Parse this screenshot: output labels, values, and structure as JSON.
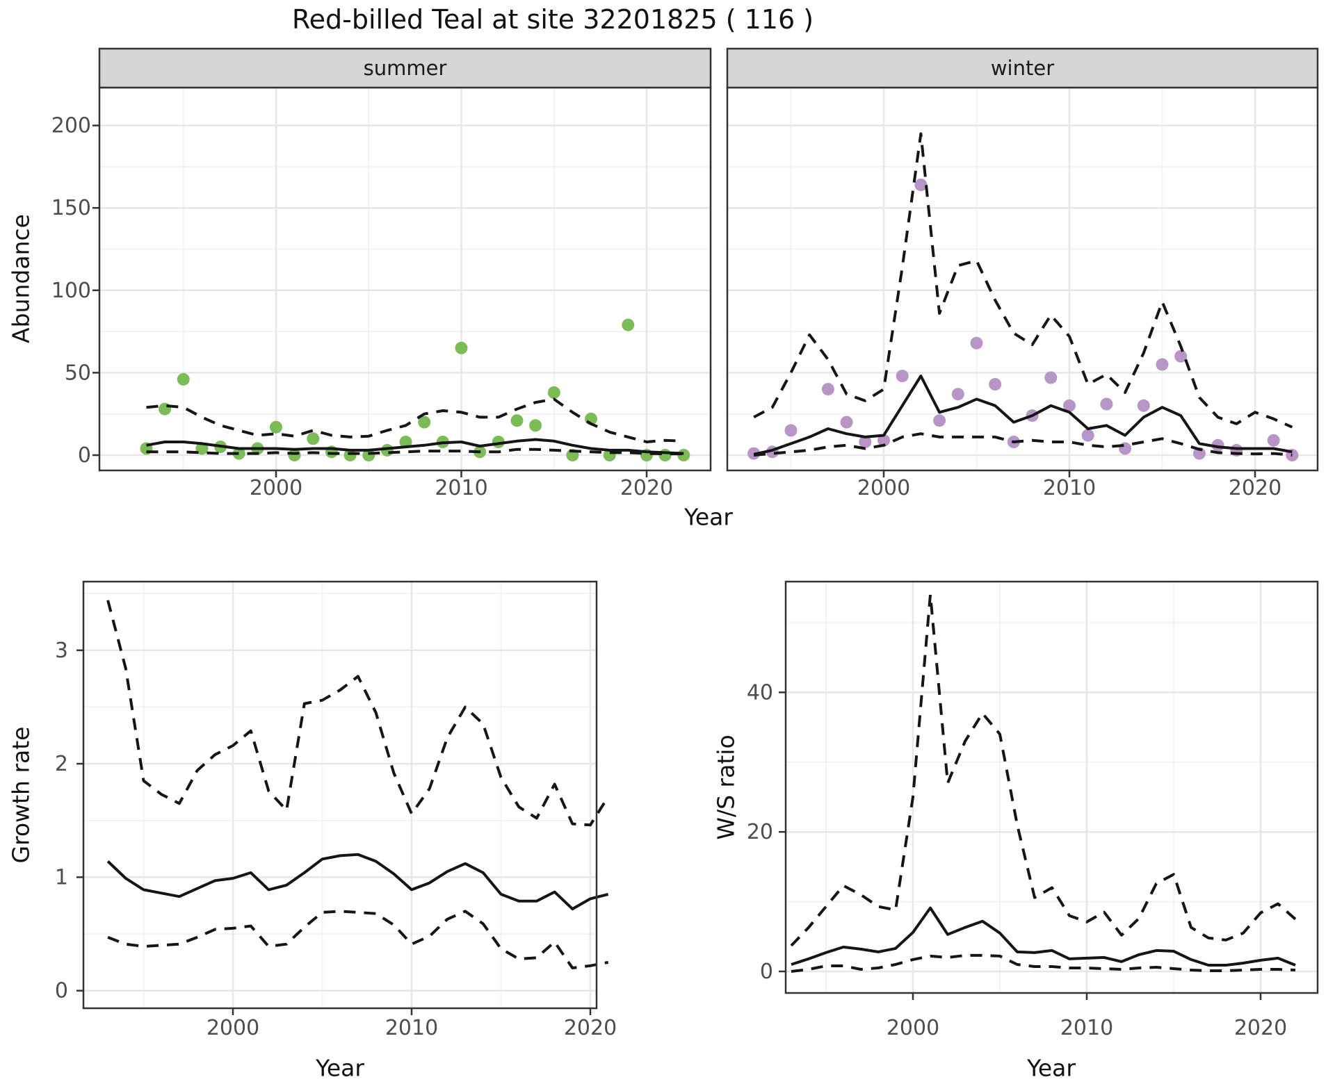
{
  "title": "Red-billed Teal at site 32201825 ( 116 )",
  "colors": {
    "summer_points": "#7cbc55",
    "winter_points": "#b795c7",
    "line": "#151515",
    "strip_bg": "#d6d6d6",
    "panel_border": "#333333",
    "grid_major": "#e7e7e7",
    "grid_minor": "#f2f2f2",
    "tick_text": "#4d4d4d"
  },
  "chart_data": [
    {
      "id": "abundance-summer",
      "type": "line",
      "facet_label": "summer",
      "xlabel": "Year",
      "ylabel": "Abundance",
      "x": [
        1993,
        1994,
        1995,
        1996,
        1997,
        1998,
        1999,
        2000,
        2001,
        2002,
        2003,
        2004,
        2005,
        2006,
        2007,
        2008,
        2009,
        2010,
        2011,
        2012,
        2013,
        2014,
        2015,
        2016,
        2017,
        2018,
        2019,
        2020,
        2021,
        2022
      ],
      "xticks": [
        2000,
        2010,
        2020
      ],
      "xticks_minor": [
        1995,
        2005,
        2015
      ],
      "yticks": [
        0,
        50,
        100,
        150,
        200
      ],
      "yticks_minor": [
        25,
        75,
        125,
        175
      ],
      "ylim": [
        -9,
        222
      ],
      "legend": "none",
      "grid": "on",
      "series": [
        {
          "name": "observed-counts",
          "kind": "points",
          "color": "#7cbc55",
          "values": [
            4,
            28,
            46,
            4,
            5,
            1,
            4,
            17,
            0,
            10,
            2,
            0,
            0,
            3,
            8,
            20,
            8,
            65,
            2,
            8,
            21,
            18,
            38,
            0,
            22,
            0,
            79,
            0,
            0,
            0
          ]
        },
        {
          "name": "model-median",
          "kind": "line",
          "style": "solid",
          "values": [
            6,
            8,
            8,
            7,
            5.5,
            4,
            4,
            4,
            3.5,
            4,
            4,
            3,
            3,
            4,
            5,
            6,
            7.5,
            8,
            5.5,
            7,
            8.5,
            9.5,
            8.5,
            6,
            4,
            3,
            3,
            2,
            1.5,
            1
          ]
        },
        {
          "name": "upper-credible-interval",
          "kind": "line",
          "style": "dashed",
          "values": [
            29,
            30,
            29,
            23,
            18,
            15,
            12,
            13,
            11.5,
            15,
            12,
            11,
            11.5,
            15,
            18,
            25,
            27,
            26,
            23,
            23,
            28,
            32,
            34,
            26,
            19,
            14,
            11,
            8,
            9,
            8.5
          ]
        },
        {
          "name": "lower-credible-interval",
          "kind": "line",
          "style": "dashed",
          "values": [
            2,
            2,
            2,
            1.5,
            1,
            1,
            1,
            1.5,
            1,
            1.5,
            1,
            1,
            1,
            1.5,
            2,
            2.5,
            2.5,
            2.5,
            2,
            2,
            3.5,
            3.5,
            3,
            2.5,
            2,
            1.5,
            1.5,
            1,
            0.8,
            0.8
          ]
        }
      ]
    },
    {
      "id": "abundance-winter",
      "type": "line",
      "facet_label": "winter",
      "xlabel": "Year",
      "ylabel": "Abundance",
      "x": [
        1993,
        1994,
        1995,
        1996,
        1997,
        1998,
        1999,
        2000,
        2001,
        2002,
        2003,
        2004,
        2005,
        2006,
        2007,
        2008,
        2009,
        2010,
        2011,
        2012,
        2013,
        2014,
        2015,
        2016,
        2017,
        2018,
        2019,
        2020,
        2021,
        2022
      ],
      "xticks": [
        2000,
        2010,
        2020
      ],
      "xticks_minor": [
        1995,
        2005,
        2015
      ],
      "yticks": [
        0,
        50,
        100,
        150,
        200
      ],
      "yticks_minor": [
        25,
        75,
        125,
        175
      ],
      "ylim": [
        -9,
        222
      ],
      "legend": "none",
      "grid": "on",
      "series": [
        {
          "name": "observed-counts",
          "kind": "points",
          "color": "#b795c7",
          "values": [
            1,
            2,
            15,
            null,
            40,
            20,
            8,
            9,
            48,
            164,
            21,
            37,
            68,
            43,
            8,
            24,
            47,
            30,
            12,
            31,
            4,
            30,
            55,
            60,
            1,
            6,
            3,
            null,
            9,
            0
          ]
        },
        {
          "name": "model-median",
          "kind": "line",
          "style": "solid",
          "values": [
            0.5,
            3,
            7,
            11,
            16,
            13,
            11,
            12,
            30,
            48,
            26,
            29,
            34,
            30,
            20,
            24,
            30,
            26,
            16,
            18,
            12,
            23,
            29,
            24,
            7,
            5,
            4,
            4,
            4,
            2
          ]
        },
        {
          "name": "upper-credible-interval",
          "kind": "line",
          "style": "dashed",
          "values": [
            23,
            29,
            50,
            73,
            58,
            37,
            33,
            40,
            114,
            195,
            86,
            115,
            118,
            94,
            74,
            67,
            85,
            72,
            43,
            49,
            38,
            62,
            93,
            66,
            35,
            23,
            19,
            26,
            22,
            17
          ]
        },
        {
          "name": "lower-credible-interval",
          "kind": "line",
          "style": "dashed",
          "values": [
            0,
            1,
            2,
            3,
            5,
            6,
            4,
            6,
            11,
            13,
            11,
            11,
            11,
            11,
            8,
            9,
            8,
            8,
            6,
            5,
            6,
            8,
            10,
            7,
            3.5,
            1.5,
            1,
            0.7,
            1,
            0
          ]
        }
      ]
    },
    {
      "id": "growth-rate",
      "type": "line",
      "facet_label": "",
      "xlabel": "Year",
      "ylabel": "Growth rate",
      "x": [
        1993,
        1994,
        1995,
        1996,
        1997,
        1998,
        1999,
        2000,
        2001,
        2002,
        2003,
        2004,
        2005,
        2006,
        2007,
        2008,
        2009,
        2010,
        2011,
        2012,
        2013,
        2014,
        2015,
        2016,
        2017,
        2018,
        2019,
        2020,
        2021
      ],
      "xticks": [
        2000,
        2010,
        2020
      ],
      "xticks_minor": [
        1995,
        2005,
        2015
      ],
      "yticks": [
        0,
        1,
        2,
        3
      ],
      "yticks_minor": [
        0.5,
        1.5,
        2.5,
        3.5
      ],
      "ylim": [
        -0.16,
        3.6
      ],
      "legend": "none",
      "grid": "on",
      "series": [
        {
          "name": "model-median",
          "kind": "line",
          "style": "solid",
          "values": [
            1.14,
            0.99,
            0.89,
            0.86,
            0.83,
            0.9,
            0.97,
            0.99,
            1.04,
            0.89,
            0.93,
            1.04,
            1.16,
            1.19,
            1.2,
            1.14,
            1.03,
            0.89,
            0.95,
            1.05,
            1.12,
            1.04,
            0.85,
            0.79,
            0.79,
            0.87,
            0.72,
            0.81,
            0.85
          ]
        },
        {
          "name": "upper-credible-interval",
          "kind": "line",
          "style": "dashed",
          "values": [
            3.44,
            2.84,
            1.85,
            1.73,
            1.65,
            1.94,
            2.08,
            2.16,
            2.29,
            1.76,
            1.59,
            2.53,
            2.56,
            2.65,
            2.77,
            2.45,
            1.92,
            1.56,
            1.78,
            2.23,
            2.5,
            2.35,
            1.88,
            1.62,
            1.52,
            1.82,
            1.47,
            1.46,
            1.71
          ]
        },
        {
          "name": "lower-credible-interval",
          "kind": "line",
          "style": "dashed",
          "values": [
            0.47,
            0.41,
            0.39,
            0.4,
            0.41,
            0.47,
            0.54,
            0.55,
            0.57,
            0.39,
            0.41,
            0.56,
            0.69,
            0.7,
            0.69,
            0.68,
            0.58,
            0.41,
            0.48,
            0.63,
            0.7,
            0.59,
            0.37,
            0.28,
            0.29,
            0.43,
            0.2,
            0.22,
            0.25
          ]
        }
      ]
    },
    {
      "id": "ws-ratio",
      "type": "line",
      "facet_label": "",
      "xlabel": "Year",
      "ylabel": "W/S ratio",
      "x": [
        1993,
        1994,
        1995,
        1996,
        1997,
        1998,
        1999,
        2000,
        2001,
        2002,
        2003,
        2004,
        2005,
        2006,
        2007,
        2008,
        2009,
        2010,
        2011,
        2012,
        2013,
        2014,
        2015,
        2016,
        2017,
        2018,
        2019,
        2020,
        2021,
        2022
      ],
      "xticks": [
        2000,
        2010,
        2020
      ],
      "xticks_minor": [
        1995,
        2005,
        2015
      ],
      "yticks": [
        0,
        20,
        40
      ],
      "yticks_minor": [
        10,
        30,
        50
      ],
      "ylim": [
        -3.1,
        55.9
      ],
      "legend": "none",
      "grid": "on",
      "series": [
        {
          "name": "model-median",
          "kind": "line",
          "style": "solid",
          "values": [
            1.0,
            1.8,
            2.7,
            3.5,
            3.2,
            2.8,
            3.3,
            5.6,
            9.1,
            5.3,
            6.3,
            7.2,
            5.5,
            2.8,
            2.7,
            3.0,
            1.8,
            1.9,
            2.0,
            1.4,
            2.4,
            3.0,
            2.9,
            1.7,
            0.9,
            0.9,
            1.2,
            1.6,
            1.9,
            0.9
          ]
        },
        {
          "name": "upper-credible-interval",
          "kind": "line",
          "style": "dashed",
          "values": [
            3.7,
            6.3,
            9.3,
            12.3,
            11.0,
            9.3,
            8.8,
            25,
            54,
            27,
            33,
            37,
            34,
            21,
            10.6,
            12,
            8.0,
            7.1,
            8.5,
            5.2,
            7.6,
            12.6,
            13.9,
            6.3,
            4.8,
            4.5,
            5.5,
            8.4,
            9.7,
            7.5
          ]
        },
        {
          "name": "lower-credible-interval",
          "kind": "line",
          "style": "dashed",
          "values": [
            0,
            0.3,
            0.8,
            0.8,
            0.3,
            0.5,
            1.0,
            1.7,
            2.2,
            2.0,
            2.3,
            2.3,
            2.2,
            1.0,
            0.7,
            0.7,
            0.5,
            0.5,
            0.4,
            0.3,
            0.5,
            0.6,
            0.4,
            0.2,
            0.1,
            0.1,
            0.2,
            0.3,
            0.3,
            0.2
          ]
        }
      ]
    }
  ]
}
